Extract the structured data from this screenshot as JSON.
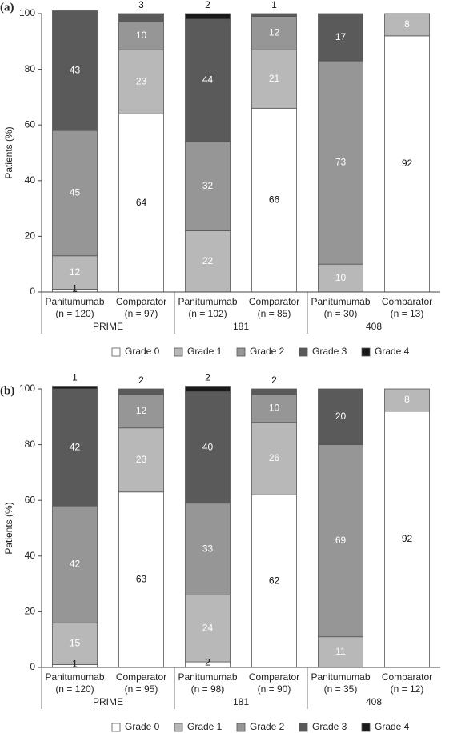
{
  "chart_data": [
    {
      "type": "bar",
      "stacked": true,
      "panel_label": "(a)",
      "ylabel": "Patients (%)",
      "categories": [
        "Panitumumab",
        "Comparator",
        "Panitumumab",
        "Comparator",
        "Panitumumab",
        "Comparator"
      ],
      "n_labels": [
        "(n = 120)",
        "(n = 97)",
        "(n = 102)",
        "(n = 85)",
        "(n = 30)",
        "(n = 13)"
      ],
      "groups": [
        "PRIME",
        "181",
        "408"
      ],
      "ylim": [
        0,
        100
      ],
      "yticks": [
        0,
        20,
        40,
        60,
        80,
        100
      ],
      "series": [
        {
          "name": "Grade 0",
          "color": "#ffffff",
          "values": [
            1,
            64,
            null,
            66,
            null,
            92
          ]
        },
        {
          "name": "Grade 1",
          "color": "#b8b8b8",
          "values": [
            12,
            23,
            22,
            21,
            10,
            8
          ]
        },
        {
          "name": "Grade 2",
          "color": "#969696",
          "values": [
            45,
            10,
            32,
            12,
            73,
            null
          ]
        },
        {
          "name": "Grade 3",
          "color": "#5a5a5a",
          "values": [
            43,
            3,
            44,
            1,
            17,
            null
          ]
        },
        {
          "name": "Grade 4",
          "color": "#1a1a1a",
          "values": [
            null,
            null,
            2,
            null,
            null,
            null
          ]
        }
      ]
    },
    {
      "type": "bar",
      "stacked": true,
      "panel_label": "(b)",
      "ylabel": "Patients (%)",
      "categories": [
        "Panitumumab",
        "Comparator",
        "Panitumumab",
        "Comparator",
        "Panitumumab",
        "Comparator"
      ],
      "n_labels": [
        "(n = 120)",
        "(n = 95)",
        "(n = 98)",
        "(n = 90)",
        "(n = 35)",
        "(n = 12)"
      ],
      "groups": [
        "PRIME",
        "181",
        "408"
      ],
      "ylim": [
        0,
        100
      ],
      "yticks": [
        0,
        20,
        40,
        60,
        80,
        100
      ],
      "series": [
        {
          "name": "Grade 0",
          "color": "#ffffff",
          "values": [
            1,
            63,
            2,
            62,
            null,
            92
          ]
        },
        {
          "name": "Grade 1",
          "color": "#b8b8b8",
          "values": [
            15,
            23,
            24,
            26,
            11,
            8
          ]
        },
        {
          "name": "Grade 2",
          "color": "#969696",
          "values": [
            42,
            12,
            33,
            10,
            69,
            null
          ]
        },
        {
          "name": "Grade 3",
          "color": "#5a5a5a",
          "values": [
            42,
            2,
            40,
            2,
            20,
            null
          ]
        },
        {
          "name": "Grade 4",
          "color": "#1a1a1a",
          "values": [
            1,
            null,
            2,
            null,
            null,
            null
          ]
        }
      ]
    }
  ]
}
